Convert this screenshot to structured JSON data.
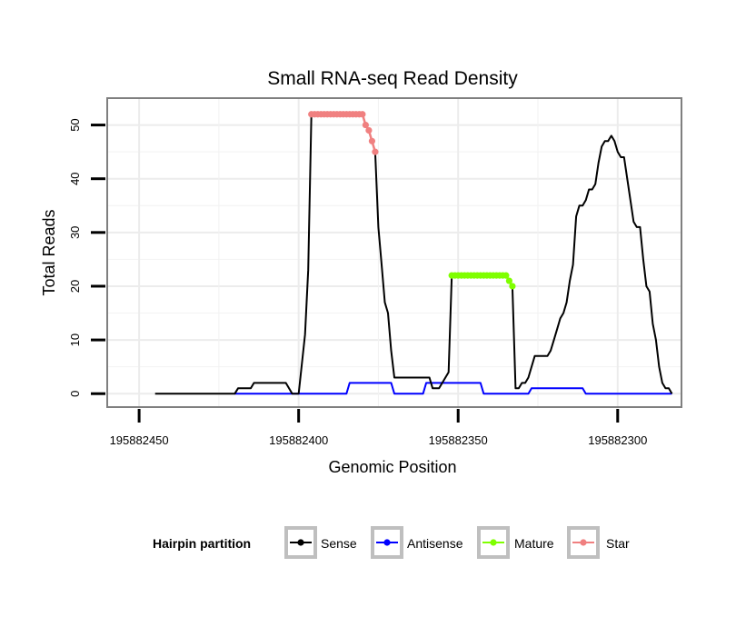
{
  "chart_data": {
    "type": "line",
    "title": "Small RNA-seq Read Density",
    "xlabel": "Genomic Position",
    "ylabel": "Total Reads",
    "x_reversed": true,
    "xlim": [
      195882460,
      195882280
    ],
    "ylim": [
      -2.5,
      55
    ],
    "x_ticks": [
      195882450,
      195882400,
      195882350,
      195882300
    ],
    "x_tick_labels": [
      "195882450",
      "195882400",
      "195882350",
      "195882300"
    ],
    "y_ticks": [
      0,
      10,
      20,
      30,
      40,
      50
    ],
    "y_tick_labels": [
      "0",
      "10",
      "20",
      "30",
      "40",
      "50"
    ],
    "grid": true,
    "legend": {
      "title": "Hairpin partition",
      "position": "bottom",
      "entries": [
        "Sense",
        "Antisense",
        "Mature",
        "Star"
      ]
    },
    "series": [
      {
        "name": "Sense",
        "color": "#000000",
        "points": [
          [
            195882445,
            0
          ],
          [
            195882420,
            0
          ],
          [
            195882419,
            1
          ],
          [
            195882415,
            1
          ],
          [
            195882414,
            2
          ],
          [
            195882404,
            2
          ],
          [
            195882402,
            0
          ],
          [
            195882400,
            0
          ],
          [
            195882398,
            11
          ],
          [
            195882397,
            23
          ],
          [
            195882396,
            52
          ],
          [
            195882380,
            52
          ],
          [
            195882379,
            50
          ],
          [
            195882378,
            49
          ],
          [
            195882377,
            47
          ],
          [
            195882376,
            45
          ],
          [
            195882375,
            31
          ],
          [
            195882374,
            24
          ],
          [
            195882373,
            17
          ],
          [
            195882372,
            15
          ],
          [
            195882371,
            8
          ],
          [
            195882370,
            3
          ],
          [
            195882359,
            3
          ],
          [
            195882358,
            1
          ],
          [
            195882356,
            1
          ],
          [
            195882354,
            3
          ],
          [
            195882353,
            4
          ],
          [
            195882352,
            22
          ],
          [
            195882335,
            22
          ],
          [
            195882334,
            21
          ],
          [
            195882333,
            20
          ],
          [
            195882332,
            1
          ],
          [
            195882331,
            1
          ],
          [
            195882330,
            2
          ],
          [
            195882329,
            2
          ],
          [
            195882328,
            3
          ],
          [
            195882326,
            7
          ],
          [
            195882322,
            7
          ],
          [
            195882321,
            8
          ],
          [
            195882320,
            10
          ],
          [
            195882319,
            12
          ],
          [
            195882318,
            14
          ],
          [
            195882317,
            15
          ],
          [
            195882316,
            17
          ],
          [
            195882315,
            21
          ],
          [
            195882314,
            24
          ],
          [
            195882313,
            33
          ],
          [
            195882312,
            35
          ],
          [
            195882311,
            35
          ],
          [
            195882310,
            36
          ],
          [
            195882309,
            38
          ],
          [
            195882308,
            38
          ],
          [
            195882307,
            39
          ],
          [
            195882306,
            43
          ],
          [
            195882305,
            46
          ],
          [
            195882304,
            47
          ],
          [
            195882303,
            47
          ],
          [
            195882302,
            48
          ],
          [
            195882301,
            47
          ],
          [
            195882300,
            45
          ],
          [
            195882299,
            44
          ],
          [
            195882298,
            44
          ],
          [
            195882297,
            40
          ],
          [
            195882296,
            36
          ],
          [
            195882295,
            32
          ],
          [
            195882294,
            31
          ],
          [
            195882293,
            31
          ],
          [
            195882292,
            25
          ],
          [
            195882291,
            20
          ],
          [
            195882290,
            19
          ],
          [
            195882289,
            13
          ],
          [
            195882288,
            10
          ],
          [
            195882287,
            5
          ],
          [
            195882286,
            2
          ],
          [
            195882285,
            1
          ],
          [
            195882284,
            1
          ],
          [
            195882283,
            0
          ]
        ]
      },
      {
        "name": "Antisense",
        "color": "#0000ff",
        "points": [
          [
            195882420,
            0
          ],
          [
            195882385,
            0
          ],
          [
            195882384,
            2
          ],
          [
            195882371,
            2
          ],
          [
            195882370,
            0
          ],
          [
            195882361,
            0
          ],
          [
            195882360,
            2
          ],
          [
            195882343,
            2
          ],
          [
            195882342,
            0
          ],
          [
            195882328,
            0
          ],
          [
            195882327,
            1
          ],
          [
            195882311,
            1
          ],
          [
            195882310,
            0
          ],
          [
            195882283,
            0
          ]
        ]
      },
      {
        "name": "Mature",
        "color": "#7fff00",
        "points": [
          [
            195882352,
            22
          ],
          [
            195882351,
            22
          ],
          [
            195882350,
            22
          ],
          [
            195882349,
            22
          ],
          [
            195882348,
            22
          ],
          [
            195882347,
            22
          ],
          [
            195882346,
            22
          ],
          [
            195882345,
            22
          ],
          [
            195882344,
            22
          ],
          [
            195882343,
            22
          ],
          [
            195882342,
            22
          ],
          [
            195882341,
            22
          ],
          [
            195882340,
            22
          ],
          [
            195882339,
            22
          ],
          [
            195882338,
            22
          ],
          [
            195882337,
            22
          ],
          [
            195882336,
            22
          ],
          [
            195882335,
            22
          ],
          [
            195882334,
            21
          ],
          [
            195882333,
            20
          ]
        ]
      },
      {
        "name": "Star",
        "color": "#f08080",
        "points": [
          [
            195882396,
            52
          ],
          [
            195882395,
            52
          ],
          [
            195882394,
            52
          ],
          [
            195882393,
            52
          ],
          [
            195882392,
            52
          ],
          [
            195882391,
            52
          ],
          [
            195882390,
            52
          ],
          [
            195882389,
            52
          ],
          [
            195882388,
            52
          ],
          [
            195882387,
            52
          ],
          [
            195882386,
            52
          ],
          [
            195882385,
            52
          ],
          [
            195882384,
            52
          ],
          [
            195882383,
            52
          ],
          [
            195882382,
            52
          ],
          [
            195882381,
            52
          ],
          [
            195882380,
            52
          ],
          [
            195882379,
            50
          ],
          [
            195882378,
            49
          ],
          [
            195882377,
            47
          ],
          [
            195882376,
            45
          ]
        ]
      }
    ]
  }
}
